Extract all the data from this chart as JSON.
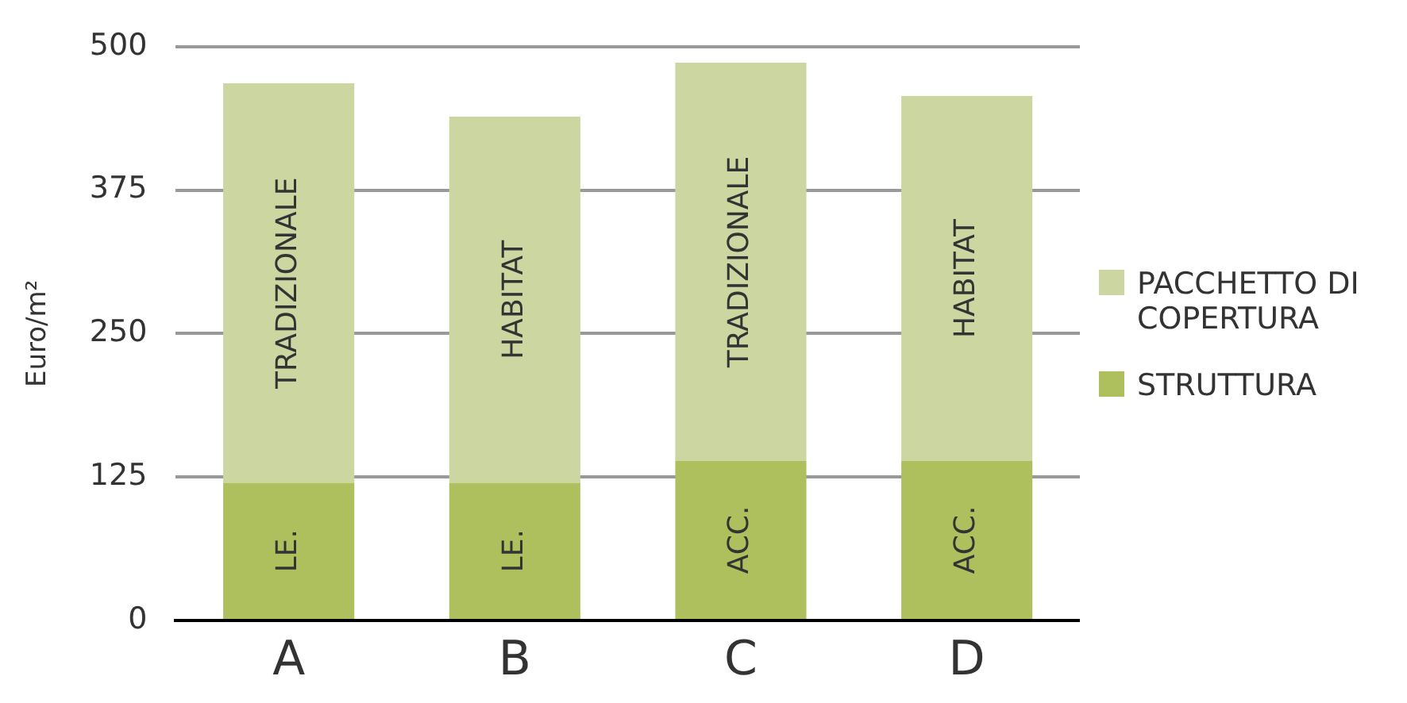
{
  "chart_data": {
    "type": "bar",
    "stacked": true,
    "ylabel": "Euro/m²",
    "categories": [
      "A",
      "B",
      "C",
      "D"
    ],
    "series": [
      {
        "name": "STRUTTURA",
        "color": "#aebf5e",
        "values": [
          120,
          120,
          139,
          139
        ],
        "value_labels": [
          "LE.",
          "LE.",
          "ACC.",
          "ACC."
        ]
      },
      {
        "name": "PACCHETTO DI COPERTURA",
        "color": "#cbd6a1",
        "values": [
          348,
          319,
          347,
          318
        ],
        "value_labels": [
          "TRADIZIONALE",
          "HABITAT",
          "TRADIZIONALE",
          "HABITAT"
        ]
      }
    ],
    "ylim": [
      0,
      500
    ],
    "yticks": [
      0,
      125,
      250,
      375,
      500
    ],
    "grid": "y",
    "legend": "right"
  }
}
